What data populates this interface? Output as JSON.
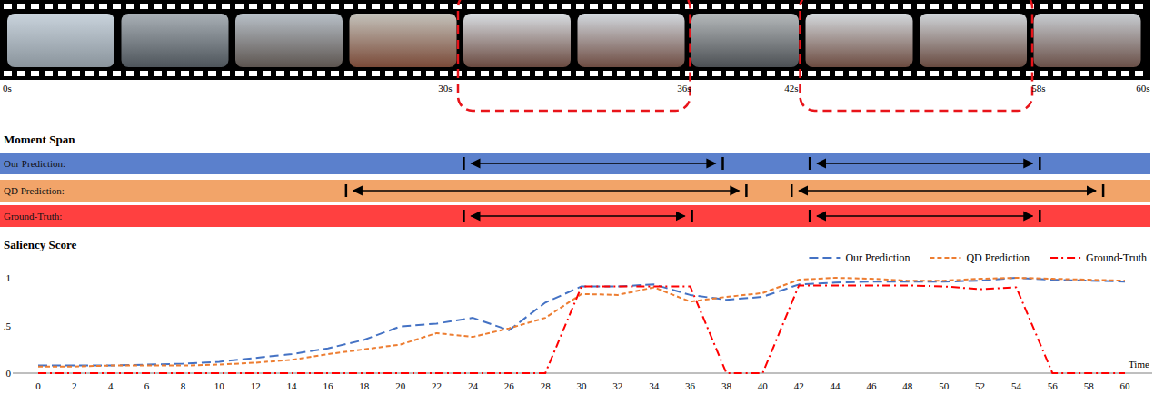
{
  "filmstrip": {
    "time_labels": [
      "0s",
      "30s",
      "36s",
      "42s",
      "58s",
      "60s"
    ]
  },
  "moment_span": {
    "title": "Moment Span",
    "xlim": [
      0,
      60
    ],
    "rows": [
      {
        "label": "Our Prediction:",
        "color": "#5b80cc",
        "spans": [
          [
            23.5,
            37.8
          ],
          [
            42.6,
            55.3
          ]
        ]
      },
      {
        "label": "QD Prediction:",
        "color": "#f2a469",
        "spans": [
          [
            17.0,
            39.1
          ],
          [
            41.6,
            58.8
          ]
        ]
      },
      {
        "label": "Ground-Truth:",
        "color": "#ff4040",
        "spans": [
          [
            23.5,
            36.1
          ],
          [
            42.6,
            55.3
          ]
        ]
      }
    ]
  },
  "chart_data": {
    "type": "line",
    "title": "Saliency Score",
    "xlabel": "Time",
    "x": [
      0,
      2,
      4,
      6,
      8,
      10,
      12,
      14,
      16,
      18,
      20,
      22,
      24,
      26,
      28,
      30,
      32,
      34,
      36,
      38,
      40,
      42,
      44,
      46,
      48,
      50,
      52,
      54,
      56,
      58,
      60
    ],
    "xlim": [
      0,
      60
    ],
    "xticks": [
      0,
      2,
      4,
      6,
      8,
      10,
      12,
      14,
      16,
      18,
      20,
      22,
      24,
      26,
      28,
      30,
      32,
      34,
      36,
      38,
      40,
      42,
      44,
      46,
      48,
      50,
      52,
      54,
      56,
      58,
      60
    ],
    "ylim": [
      0,
      1
    ],
    "yticks": [
      0,
      {
        "value": 0.5,
        "label": ".5"
      },
      1
    ],
    "grid": false,
    "legend": "top",
    "series": [
      {
        "name": "Our Prediction",
        "color": "#4472c4",
        "line_style": "long-dash",
        "values": [
          0.08,
          0.08,
          0.08,
          0.09,
          0.1,
          0.12,
          0.16,
          0.2,
          0.26,
          0.35,
          0.49,
          0.52,
          0.58,
          0.45,
          0.74,
          0.91,
          0.91,
          0.93,
          0.82,
          0.77,
          0.8,
          0.93,
          0.95,
          0.96,
          0.96,
          0.96,
          0.97,
          1.0,
          0.98,
          0.97,
          0.96
        ]
      },
      {
        "name": "QD Prediction",
        "color": "#ed7d31",
        "line_style": "dash",
        "values": [
          0.07,
          0.07,
          0.08,
          0.08,
          0.08,
          0.09,
          0.11,
          0.14,
          0.2,
          0.25,
          0.3,
          0.42,
          0.38,
          0.47,
          0.58,
          0.83,
          0.82,
          0.9,
          0.75,
          0.8,
          0.84,
          0.98,
          1.0,
          0.99,
          0.97,
          0.97,
          0.99,
          1.0,
          0.99,
          0.98,
          0.97
        ]
      },
      {
        "name": "Ground-Truth",
        "color": "#ff0000",
        "line_style": "dash-dot",
        "values": [
          0,
          0,
          0,
          0,
          0,
          0,
          0,
          0,
          0,
          0,
          0,
          0,
          0,
          0,
          0,
          0.91,
          0.91,
          0.91,
          0.91,
          0,
          0,
          0.92,
          0.92,
          0.92,
          0.92,
          0.91,
          0.88,
          0.9,
          0,
          0,
          0
        ]
      }
    ]
  }
}
